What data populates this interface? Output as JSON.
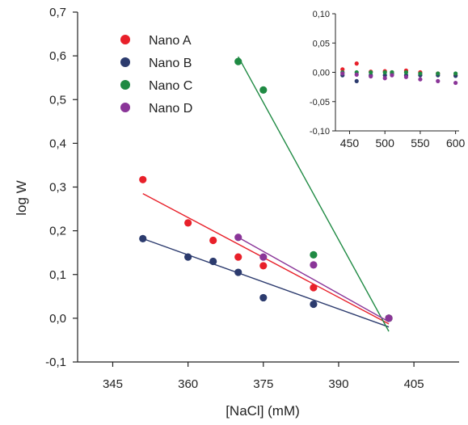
{
  "chart_data": [
    {
      "type": "scatter",
      "xlabel": "[NaCl] (mM)",
      "ylabel": "log W",
      "xlim": [
        338,
        414
      ],
      "ylim": [
        -0.1,
        0.7
      ],
      "x_ticks": [
        345,
        360,
        375,
        390,
        405
      ],
      "y_ticks": [
        -0.1,
        0.0,
        0.1,
        0.2,
        0.3,
        0.4,
        0.5,
        0.6,
        0.7
      ],
      "x_tick_labels": [
        "345",
        "360",
        "375",
        "390",
        "405"
      ],
      "y_tick_labels": [
        "-0,1",
        "0,0",
        "0,1",
        "0,2",
        "0,3",
        "0,4",
        "0,5",
        "0,6",
        "0,7"
      ],
      "grid": false,
      "legend_position": "top-left",
      "series": [
        {
          "name": "Nano A",
          "color": "#e8202a",
          "x": [
            351,
            360,
            365,
            370,
            375,
            385,
            400
          ],
          "y": [
            0.317,
            0.218,
            0.178,
            0.14,
            0.12,
            0.07,
            0.0
          ],
          "fit": [
            [
              351,
              0.285
            ],
            [
              400,
              -0.013
            ]
          ]
        },
        {
          "name": "Nano B",
          "color": "#2c3b6e",
          "x": [
            351,
            360,
            365,
            370,
            375,
            385,
            400
          ],
          "y": [
            0.182,
            0.14,
            0.13,
            0.105,
            0.047,
            0.032,
            0.0
          ],
          "fit": [
            [
              351,
              0.182
            ],
            [
              400,
              -0.02
            ]
          ]
        },
        {
          "name": "Nano C",
          "color": "#1f8a43",
          "x": [
            370,
            375,
            385,
            400
          ],
          "y": [
            0.587,
            0.522,
            0.145,
            0.0
          ],
          "fit": [
            [
              370,
              0.598
            ],
            [
              400,
              -0.03
            ]
          ]
        },
        {
          "name": "Nano D",
          "color": "#8a3598",
          "x": [
            370,
            375,
            385,
            400
          ],
          "y": [
            0.185,
            0.14,
            0.122,
            0.0
          ],
          "fit": [
            [
              370,
              0.185
            ],
            [
              400,
              -0.008
            ]
          ]
        }
      ]
    },
    {
      "type": "scatter",
      "xlabel": "",
      "ylabel": "",
      "xlim": [
        430,
        605
      ],
      "ylim": [
        -0.1,
        0.1
      ],
      "x_ticks": [
        450,
        500,
        550,
        600
      ],
      "y_ticks": [
        -0.1,
        -0.05,
        0.0,
        0.05,
        0.1
      ],
      "x_tick_labels": [
        "450",
        "500",
        "550",
        "600"
      ],
      "y_tick_labels": [
        "-0,10",
        "-0,05",
        "0,00",
        "0,05",
        "0,10"
      ],
      "grid": false,
      "series": [
        {
          "color": "#e8202a",
          "x": [
            440,
            460,
            480,
            500,
            510,
            530,
            550,
            575,
            600
          ],
          "y": [
            0.005,
            0.015,
            0.001,
            0.002,
            0.0,
            0.003,
            0.0,
            -0.002,
            -0.005
          ]
        },
        {
          "color": "#2c3b6e",
          "x": [
            440,
            460,
            480,
            500,
            510,
            530,
            550,
            575,
            600
          ],
          "y": [
            -0.005,
            -0.015,
            -0.005,
            -0.005,
            -0.003,
            -0.005,
            -0.005,
            -0.005,
            -0.006
          ]
        },
        {
          "color": "#1f8a43",
          "x": [
            440,
            460,
            480,
            500,
            510,
            530,
            550,
            575,
            600
          ],
          "y": [
            0.0,
            0.0,
            0.0,
            0.0,
            0.0,
            0.0,
            -0.002,
            -0.002,
            -0.002
          ]
        },
        {
          "color": "#8a3598",
          "x": [
            440,
            460,
            480,
            500,
            510,
            530,
            550,
            575,
            600
          ],
          "y": [
            -0.002,
            -0.004,
            -0.007,
            -0.01,
            -0.005,
            -0.008,
            -0.012,
            -0.015,
            -0.018
          ]
        }
      ]
    }
  ]
}
